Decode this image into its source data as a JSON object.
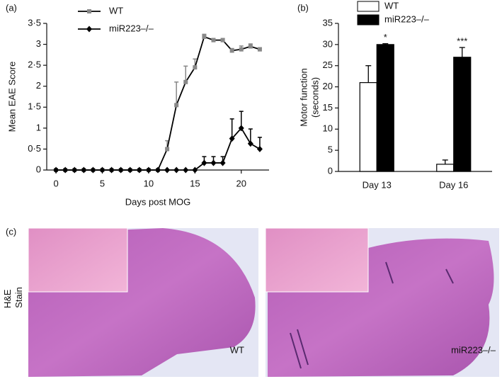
{
  "chart_data": [
    {
      "type": "line",
      "panel_label": "(a)",
      "xlabel": "Days post MOG",
      "ylabel": "Mean EAE Score",
      "x": [
        0,
        1,
        2,
        3,
        4,
        5,
        6,
        7,
        8,
        9,
        10,
        11,
        12,
        13,
        14,
        15,
        16,
        17,
        18,
        19,
        20,
        21,
        22
      ],
      "xlim": [
        -1,
        23
      ],
      "xticks": [
        0,
        5,
        10,
        15,
        20
      ],
      "ylim": [
        0,
        3.5
      ],
      "yticks": [
        0,
        {
          "value": 0.5,
          "label": "0·5"
        },
        1,
        {
          "value": 1.5,
          "label": "1·5"
        },
        2,
        {
          "value": 2.5,
          "label": "2·5"
        },
        3,
        {
          "value": 3.5,
          "label": "3·5"
        }
      ],
      "series": [
        {
          "name": "WT",
          "color": "#888888",
          "marker": "square",
          "values": [
            0,
            0,
            0,
            0,
            0,
            0,
            0,
            0,
            0,
            0,
            0,
            0,
            0.5,
            1.55,
            2.1,
            2.45,
            3.18,
            3.1,
            3.1,
            2.85,
            2.88,
            2.95,
            2.88
          ],
          "errors": [
            0,
            0,
            0,
            0,
            0,
            0,
            0,
            0,
            0,
            0,
            0,
            0,
            0.2,
            0.55,
            0.38,
            0.2,
            0.06,
            0.04,
            0.04,
            0.05,
            0.08,
            0.06,
            0.04
          ]
        },
        {
          "name": "miR223–/–",
          "color": "#000000",
          "marker": "diamond",
          "values": [
            0,
            0,
            0,
            0,
            0,
            0,
            0,
            0,
            0,
            0,
            0,
            0,
            0,
            0,
            0,
            0,
            0.17,
            0.17,
            0.17,
            0.75,
            1.0,
            0.63,
            0.5
          ],
          "errors": [
            0,
            0,
            0,
            0,
            0,
            0,
            0,
            0,
            0,
            0,
            0,
            0,
            0,
            0,
            0,
            0,
            0.15,
            0.15,
            0.15,
            0.47,
            0.4,
            0.35,
            0.28
          ]
        }
      ]
    },
    {
      "type": "bar",
      "panel_label": "(b)",
      "ylabel": [
        "Motor function",
        "(seconds)"
      ],
      "categories": [
        "Day 13",
        "Day 16"
      ],
      "ylim": [
        0,
        35
      ],
      "yticks": [
        0,
        5,
        10,
        15,
        20,
        25,
        30,
        35
      ],
      "series": [
        {
          "name": "WT",
          "color": "#ffffff",
          "values": [
            21,
            1.7
          ],
          "errors": [
            4,
            1.0
          ]
        },
        {
          "name": "miR223–/–",
          "color": "#000000",
          "values": [
            30,
            27
          ],
          "errors": [
            0.2,
            2.3
          ]
        }
      ],
      "annotations": [
        "*",
        "***"
      ]
    }
  ],
  "histology": {
    "panel_label": "(c)",
    "side_label": [
      "H&E",
      "Stain"
    ],
    "images": [
      {
        "label": "WT"
      },
      {
        "label": "miR223–/–"
      }
    ]
  }
}
